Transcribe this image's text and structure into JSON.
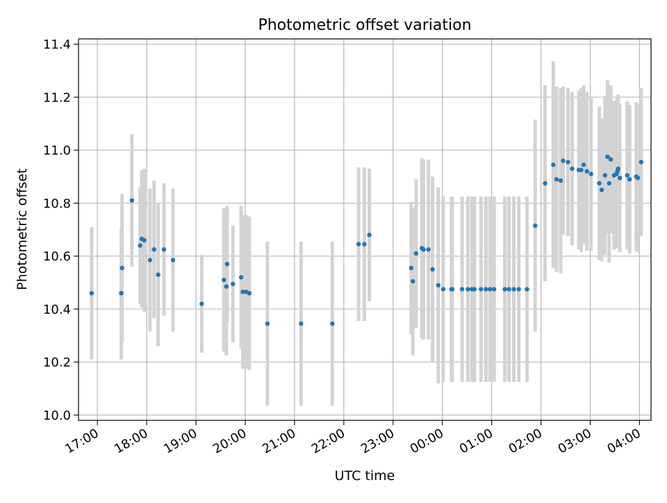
{
  "chart_data": {
    "type": "scatter",
    "title": "Photometric offset variation",
    "xlabel": "UTC time",
    "ylabel": "Photometric offset",
    "xlim": [
      "16:37",
      "04:14"
    ],
    "ylim": [
      9.98,
      11.42
    ],
    "grid": true,
    "x_ticks": [
      "17:00",
      "18:00",
      "19:00",
      "20:00",
      "21:00",
      "22:00",
      "23:00",
      "00:00",
      "01:00",
      "02:00",
      "03:00",
      "04:00"
    ],
    "y_ticks": [
      "10.0",
      "10.2",
      "10.4",
      "10.6",
      "10.8",
      "11.0",
      "11.2",
      "11.4"
    ],
    "colors": {
      "point": "#1f77b4",
      "errorbar": "#d3d3d3",
      "grid": "#b0b0b0"
    },
    "series": [
      {
        "x": [
          "16:53",
          "17:29",
          "17:30",
          "17:42",
          "17:52",
          "17:54",
          "17:57",
          "18:04",
          "18:09",
          "18:14",
          "18:21",
          "18:32",
          "19:07",
          "19:34",
          "19:37",
          "19:38",
          "19:45",
          "19:55",
          "19:57",
          "20:01",
          "20:05",
          "20:27",
          "21:08",
          "21:46",
          "22:18",
          "22:25",
          "22:31",
          "23:22",
          "23:24",
          "23:28",
          "23:35",
          "23:37",
          "23:43",
          "23:48",
          "23:55",
          "00:01",
          "00:11",
          "00:12",
          "00:24",
          "00:31",
          "00:36",
          "00:39",
          "00:47",
          "00:53",
          "00:58",
          "01:03",
          "01:16",
          "01:21",
          "01:27",
          "01:33",
          "01:43",
          "01:53",
          "02:05",
          "02:15",
          "02:19",
          "02:24",
          "02:27",
          "02:33",
          "02:38",
          "02:46",
          "02:49",
          "02:52",
          "02:56",
          "03:01",
          "03:11",
          "03:14",
          "03:18",
          "03:21",
          "03:23",
          "03:25",
          "03:29",
          "03:32",
          "03:33",
          "03:34",
          "03:36",
          "03:45",
          "03:48",
          "03:56",
          "03:58",
          "04:02"
        ],
        "y": [
          10.46,
          10.46,
          10.555,
          10.81,
          10.64,
          10.665,
          10.66,
          10.585,
          10.625,
          10.53,
          10.625,
          10.585,
          10.42,
          10.51,
          10.485,
          10.57,
          10.495,
          10.52,
          10.465,
          10.465,
          10.46,
          10.345,
          10.345,
          10.345,
          10.645,
          10.645,
          10.68,
          10.555,
          10.505,
          10.61,
          10.63,
          10.625,
          10.625,
          10.55,
          10.49,
          10.475,
          10.475,
          10.475,
          10.475,
          10.475,
          10.475,
          10.475,
          10.475,
          10.475,
          10.475,
          10.475,
          10.475,
          10.475,
          10.475,
          10.475,
          10.475,
          10.715,
          10.875,
          10.945,
          10.89,
          10.885,
          10.96,
          10.955,
          10.93,
          10.925,
          10.925,
          10.945,
          10.92,
          10.91,
          10.875,
          10.85,
          10.905,
          10.975,
          10.875,
          10.965,
          10.905,
          10.91,
          10.92,
          10.93,
          10.895,
          10.905,
          10.89,
          10.9,
          10.895,
          10.955
        ],
        "yerr": [
          0.25,
          0.25,
          0.28,
          0.25,
          0.22,
          0.26,
          0.27,
          0.27,
          0.26,
          0.27,
          0.25,
          0.27,
          0.185,
          0.27,
          0.26,
          0.22,
          0.22,
          0.27,
          0.29,
          0.29,
          0.29,
          0.31,
          0.31,
          0.31,
          0.29,
          0.29,
          0.25,
          0.25,
          0.28,
          0.28,
          0.34,
          0.34,
          0.34,
          0.35,
          0.37,
          0.35,
          0.35,
          0.35,
          0.35,
          0.35,
          0.35,
          0.35,
          0.35,
          0.35,
          0.35,
          0.35,
          0.35,
          0.35,
          0.35,
          0.35,
          0.35,
          0.4,
          0.37,
          0.39,
          0.35,
          0.35,
          0.28,
          0.28,
          0.29,
          0.3,
          0.31,
          0.3,
          0.3,
          0.29,
          0.29,
          0.27,
          0.3,
          0.29,
          0.3,
          0.28,
          0.28,
          0.28,
          0.28,
          0.28,
          0.28,
          0.28,
          0.28,
          0.28,
          0.28,
          0.28
        ]
      }
    ]
  }
}
